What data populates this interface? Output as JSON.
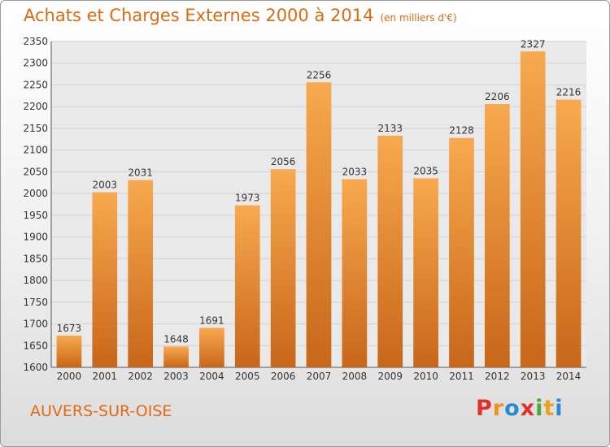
{
  "title": "Achats et Charges Externes 2000 à 2014",
  "subtitle": "(en milliers d'€)",
  "city": "AUVERS-SUR-OISE",
  "logo": {
    "letters": [
      "P",
      "r",
      "o",
      "x",
      "i",
      "t",
      "i"
    ],
    "colors": [
      "#e0302a",
      "#f09020",
      "#2a8ad0",
      "#e0302a",
      "#48a838",
      "#f0a020",
      "#2a8ad0"
    ]
  },
  "colors": {
    "accent": "#e06a12",
    "bar_top": "#f8a94f",
    "bar_bottom": "#c8661a",
    "grid": "#d2d2d2"
  },
  "chart_data": {
    "type": "bar",
    "title": "Achats et Charges Externes 2000 à 2014",
    "subtitle": "(en milliers d'€)",
    "xlabel": "",
    "ylabel": "",
    "categories": [
      "2000",
      "2001",
      "2002",
      "2003",
      "2004",
      "2005",
      "2006",
      "2007",
      "2008",
      "2009",
      "2010",
      "2011",
      "2012",
      "2013",
      "2014"
    ],
    "values": [
      1673,
      2003,
      2031,
      1648,
      1691,
      1973,
      2056,
      2256,
      2033,
      2133,
      2035,
      2128,
      2206,
      2327,
      2216
    ],
    "ylim": [
      1600,
      2350
    ],
    "yticks": [
      1600,
      1650,
      1700,
      1750,
      1800,
      1850,
      1900,
      1950,
      2000,
      2050,
      2100,
      2150,
      2200,
      2250,
      2300,
      2350
    ],
    "grid": true,
    "data_labels": true
  }
}
